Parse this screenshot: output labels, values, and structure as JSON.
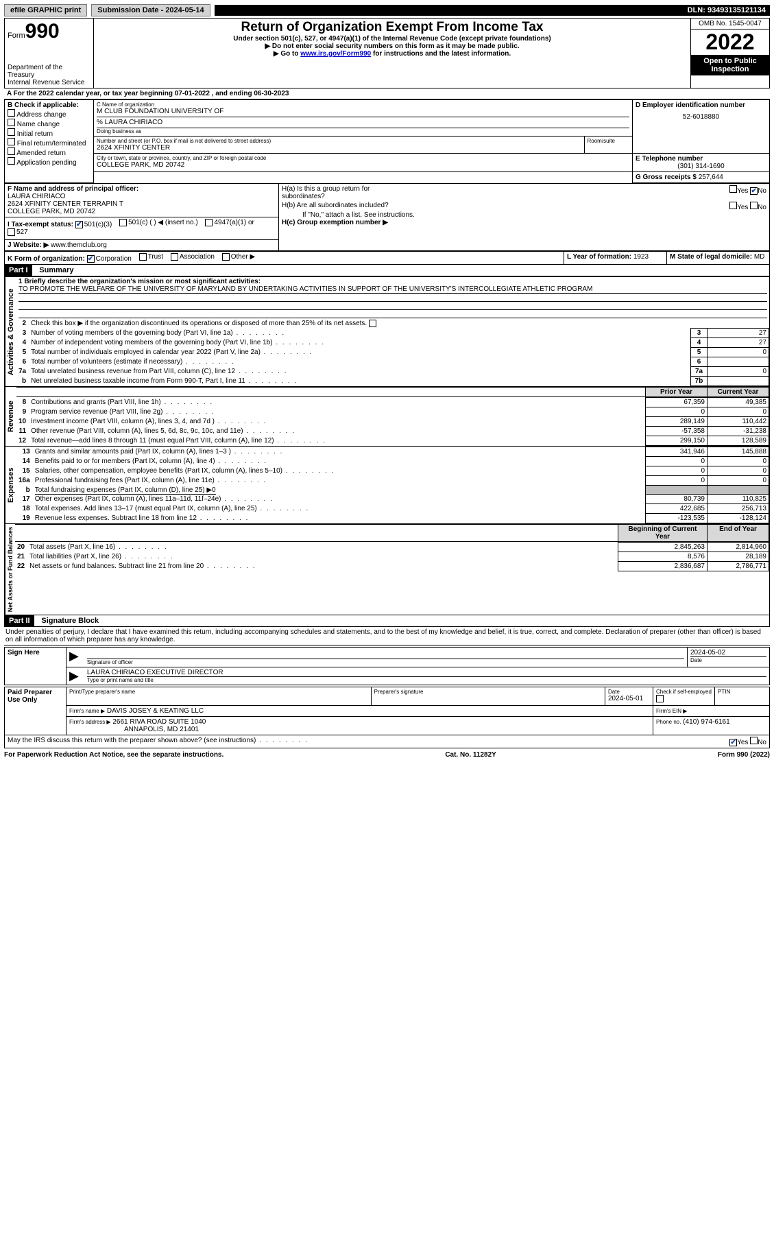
{
  "top": {
    "efile": "efile GRAPHIC print",
    "submission": "Submission Date - 2024-05-14",
    "dln": "DLN: 93493135121134"
  },
  "header": {
    "form_label": "Form",
    "form_num": "990",
    "title": "Return of Organization Exempt From Income Tax",
    "subtitle": "Under section 501(c), 527, or 4947(a)(1) of the Internal Revenue Code (except private foundations)",
    "note1": "▶ Do not enter social security numbers on this form as it may be made public.",
    "note2_prefix": "▶ Go to ",
    "note2_link": "www.irs.gov/Form990",
    "note2_suffix": " for instructions and the latest information.",
    "dept": "Department of the Treasury",
    "irs": "Internal Revenue Service",
    "omb": "OMB No. 1545-0047",
    "year": "2022",
    "open": "Open to Public Inspection"
  },
  "line_a": "For the 2022 calendar year, or tax year beginning 07-01-2022    , and ending 06-30-2023",
  "box_b": {
    "label": "B Check if applicable:",
    "items": [
      "Address change",
      "Name change",
      "Initial return",
      "Final return/terminated",
      "Amended return",
      "Application pending"
    ]
  },
  "box_c": {
    "name_label": "C Name of organization",
    "name": "M CLUB FOUNDATION UNIVERSITY OF",
    "care_of": "% LAURA CHIRIACO",
    "dba_label": "Doing business as",
    "addr_label": "Number and street (or P.O. box if mail is not delivered to street address)",
    "room_label": "Room/suite",
    "addr": "2624 XFINITY CENTER",
    "city_label": "City or town, state or province, country, and ZIP or foreign postal code",
    "city": "COLLEGE PARK, MD   20742"
  },
  "box_d": {
    "label": "D Employer identification number",
    "value": "52-6018880"
  },
  "box_e": {
    "label": "E Telephone number",
    "value": "(301) 314-1690"
  },
  "box_g": {
    "label": "G Gross receipts $",
    "value": "257,644"
  },
  "box_f": {
    "label": "F  Name and address of principal officer:",
    "name": "LAURA CHIRIACO",
    "addr1": "2624 XFINITY CENTER TERRAPIN T",
    "addr2": "COLLEGE PARK, MD   20742"
  },
  "box_h": {
    "ha": "H(a)  Is this a group return for subordinates?",
    "hb": "H(b)  Are all subordinates included?",
    "hb_note": "If \"No,\" attach a list. See instructions.",
    "hc": "H(c)  Group exemption number ▶"
  },
  "line_i": {
    "label": "I   Tax-exempt status:",
    "opts": [
      "501(c)(3)",
      "501(c) (  ) ◀ (insert no.)",
      "4947(a)(1) or",
      "527"
    ]
  },
  "line_j": {
    "label": "J   Website: ▶",
    "value": "www.themclub.org"
  },
  "line_k": {
    "label": "K Form of organization:",
    "opts": [
      "Corporation",
      "Trust",
      "Association",
      "Other ▶"
    ]
  },
  "line_l": {
    "label": "L Year of formation:",
    "value": "1923"
  },
  "line_m": {
    "label": "M State of legal domicile:",
    "value": "MD"
  },
  "part1_hdr": "Part I",
  "part1_title": "Summary",
  "mission": {
    "label": "1   Briefly describe the organization's mission or most significant activities:",
    "text": "TO PROMOTE THE WELFARE OF THE UNIVERSITY OF MARYLAND BY UNDERTAKING ACTIVITIES IN SUPPORT OF THE UNIVERSITY'S INTERCOLLEGIATE ATHLETIC PROGRAM"
  },
  "line2": "Check this box ▶     if the organization discontinued its operations or disposed of more than 25% of its net assets.",
  "gov_rows": [
    {
      "n": "3",
      "t": "Number of voting members of the governing body (Part VI, line 1a)",
      "box": "3",
      "v": "27"
    },
    {
      "n": "4",
      "t": "Number of independent voting members of the governing body (Part VI, line 1b)",
      "box": "4",
      "v": "27"
    },
    {
      "n": "5",
      "t": "Total number of individuals employed in calendar year 2022 (Part V, line 2a)",
      "box": "5",
      "v": "0"
    },
    {
      "n": "6",
      "t": "Total number of volunteers (estimate if necessary)",
      "box": "6",
      "v": ""
    },
    {
      "n": "7a",
      "t": "Total unrelated business revenue from Part VIII, column (C), line 12",
      "box": "7a",
      "v": "0"
    },
    {
      "n": "b",
      "t": "Net unrelated business taxable income from Form 990-T, Part I, line 11",
      "box": "7b",
      "v": ""
    }
  ],
  "col_hdrs": {
    "prior": "Prior Year",
    "current": "Current Year",
    "begin": "Beginning of Current Year",
    "end": "End of Year"
  },
  "revenue_rows": [
    {
      "n": "8",
      "t": "Contributions and grants (Part VIII, line 1h)",
      "p": "67,359",
      "c": "49,385"
    },
    {
      "n": "9",
      "t": "Program service revenue (Part VIII, line 2g)",
      "p": "0",
      "c": "0"
    },
    {
      "n": "10",
      "t": "Investment income (Part VIII, column (A), lines 3, 4, and 7d )",
      "p": "289,149",
      "c": "110,442"
    },
    {
      "n": "11",
      "t": "Other revenue (Part VIII, column (A), lines 5, 6d, 8c, 9c, 10c, and 11e)",
      "p": "-57,358",
      "c": "-31,238"
    },
    {
      "n": "12",
      "t": "Total revenue—add lines 8 through 11 (must equal Part VIII, column (A), line 12)",
      "p": "299,150",
      "c": "128,589"
    }
  ],
  "expense_rows": [
    {
      "n": "13",
      "t": "Grants and similar amounts paid (Part IX, column (A), lines 1–3 )",
      "p": "341,946",
      "c": "145,888"
    },
    {
      "n": "14",
      "t": "Benefits paid to or for members (Part IX, column (A), line 4)",
      "p": "0",
      "c": "0"
    },
    {
      "n": "15",
      "t": "Salaries, other compensation, employee benefits (Part IX, column (A), lines 5–10)",
      "p": "0",
      "c": "0"
    },
    {
      "n": "16a",
      "t": "Professional fundraising fees (Part IX, column (A), line 11e)",
      "p": "0",
      "c": "0"
    },
    {
      "n": "b",
      "t": "Total fundraising expenses (Part IX, column (D), line 25) ▶0",
      "p": "gray",
      "c": "gray",
      "u": true
    },
    {
      "n": "17",
      "t": "Other expenses (Part IX, column (A), lines 11a–11d, 11f–24e)",
      "p": "80,739",
      "c": "110,825"
    },
    {
      "n": "18",
      "t": "Total expenses. Add lines 13–17 (must equal Part IX, column (A), line 25)",
      "p": "422,685",
      "c": "256,713"
    },
    {
      "n": "19",
      "t": "Revenue less expenses. Subtract line 18 from line 12",
      "p": "-123,535",
      "c": "-128,124"
    }
  ],
  "net_rows": [
    {
      "n": "20",
      "t": "Total assets (Part X, line 16)",
      "p": "2,845,263",
      "c": "2,814,960"
    },
    {
      "n": "21",
      "t": "Total liabilities (Part X, line 26)",
      "p": "8,576",
      "c": "28,189"
    },
    {
      "n": "22",
      "t": "Net assets or fund balances. Subtract line 21 from line 20",
      "p": "2,836,687",
      "c": "2,786,771"
    }
  ],
  "part2_hdr": "Part II",
  "part2_title": "Signature Block",
  "perjury": "Under penalties of perjury, I declare that I have examined this return, including accompanying schedules and statements, and to the best of my knowledge and belief, it is true, correct, and complete. Declaration of preparer (other than officer) is based on all information of which preparer has any knowledge.",
  "sign": {
    "left": "Sign Here",
    "sig_label": "Signature of officer",
    "date": "2024-05-02",
    "date_label": "Date",
    "name": "LAURA CHIRIACO  EXECUTIVE DIRECTOR",
    "name_label": "Type or print name and title"
  },
  "preparer": {
    "left": "Paid Preparer Use Only",
    "print_label": "Print/Type preparer's name",
    "sig_label": "Preparer's signature",
    "date_label": "Date",
    "date": "2024-05-01",
    "self_label": "Check         if self-employed",
    "ptin_label": "PTIN",
    "firm_name_label": "Firm's name     ▶",
    "firm_name": "DAVIS JOSEY & KEATING LLC",
    "firm_ein_label": "Firm's EIN ▶",
    "firm_addr_label": "Firm's address ▶",
    "firm_addr1": "2661 RIVA ROAD SUITE 1040",
    "firm_addr2": "ANNAPOLIS, MD   21401",
    "phone_label": "Phone no.",
    "phone": "(410) 974-6161"
  },
  "discuss_q": "May the IRS discuss this return with the preparer shown above? (see instructions)",
  "footer": {
    "left": "For Paperwork Reduction Act Notice, see the separate instructions.",
    "mid": "Cat. No. 11282Y",
    "right": "Form 990 (2022)"
  },
  "vert": {
    "gov": "Activities & Governance",
    "rev": "Revenue",
    "exp": "Expenses",
    "net": "Net Assets or Fund Balances"
  }
}
